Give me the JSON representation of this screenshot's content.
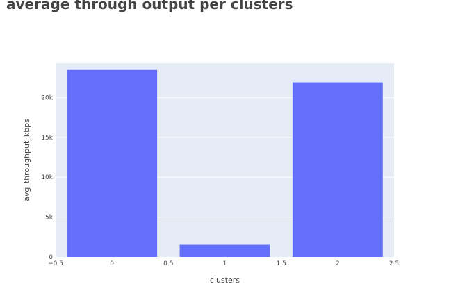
{
  "chart_data": {
    "type": "bar",
    "title": "average through output per clusters",
    "xlabel": "clusters",
    "ylabel": "avg_throughput_kbps",
    "x": [
      0,
      1,
      2
    ],
    "values": [
      23450,
      1520,
      21900
    ],
    "xlim": [
      -0.5,
      2.5
    ],
    "ylim": [
      0,
      24300
    ],
    "xticks": [
      "−0.5",
      "0",
      "0.5",
      "1",
      "1.5",
      "2",
      "2.5"
    ],
    "xtick_values": [
      -0.5,
      0,
      0.5,
      1,
      1.5,
      2,
      2.5
    ],
    "yticks": [
      "0",
      "5k",
      "10k",
      "15k",
      "20k"
    ],
    "ytick_values": [
      0,
      5000,
      10000,
      15000,
      20000
    ],
    "bar_color": "#636efa",
    "plot_bg": "#e5ecf6",
    "grid": true
  }
}
